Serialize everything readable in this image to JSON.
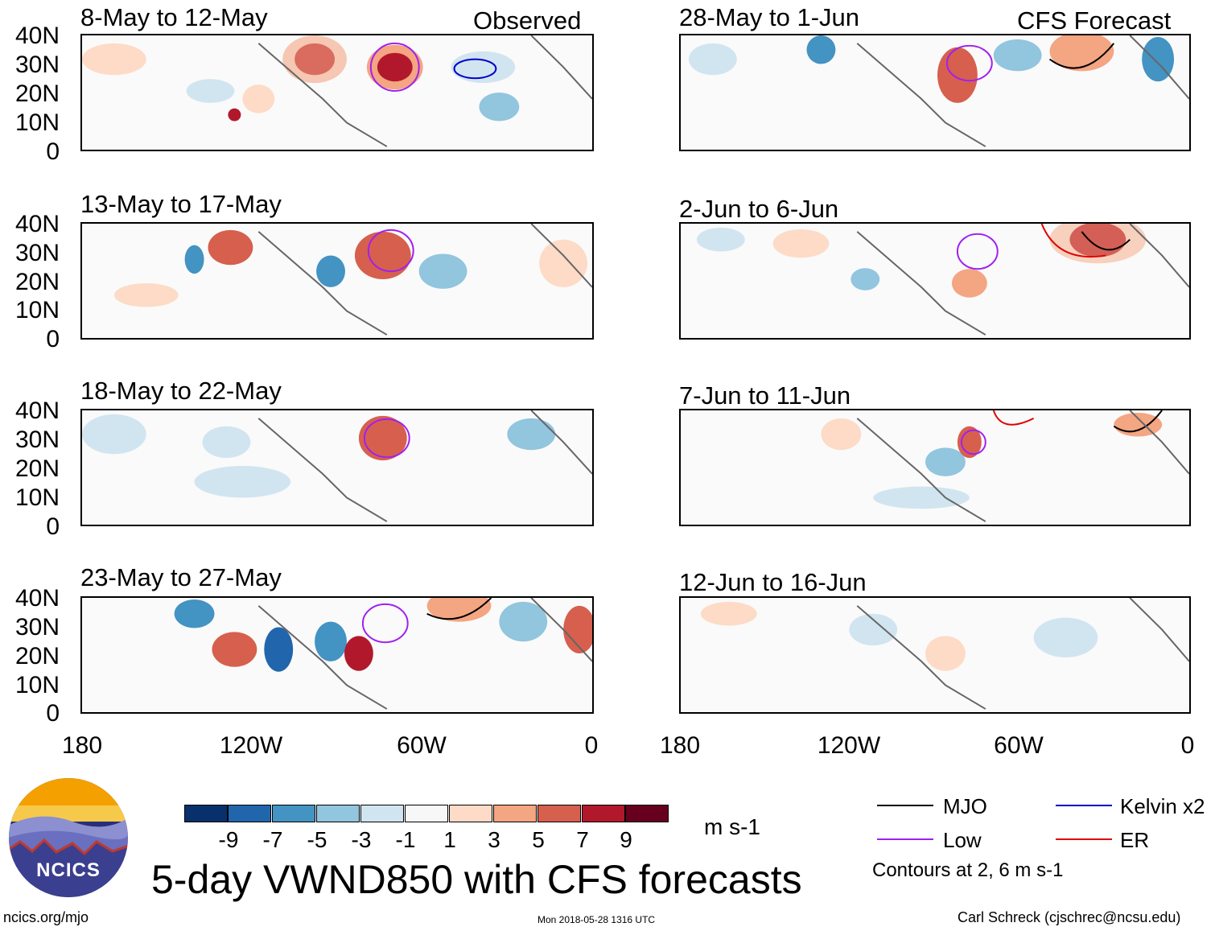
{
  "observed_label": "Observed",
  "forecast_label": "CFS Forecast",
  "lat_labels": [
    "40N",
    "30N",
    "20N",
    "10N",
    "0"
  ],
  "lon_labels": [
    "180",
    "120W",
    "60W",
    "0"
  ],
  "panels_left": [
    {
      "title": "8-May to 12-May"
    },
    {
      "title": "13-May to 17-May"
    },
    {
      "title": "18-May to 22-May"
    },
    {
      "title": "23-May to 27-May"
    }
  ],
  "panels_right": [
    {
      "title": "28-May to 1-Jun"
    },
    {
      "title": "2-Jun to 6-Jun"
    },
    {
      "title": "7-Jun to 11-Jun"
    },
    {
      "title": "12-Jun to 16-Jun"
    }
  ],
  "colorbar": {
    "labels": [
      "-9",
      "-7",
      "-5",
      "-3",
      "-1",
      "1",
      "3",
      "5",
      "7",
      "9"
    ],
    "colors": [
      "#08306b",
      "#2166ac",
      "#4393c3",
      "#92c5de",
      "#d1e5f0",
      "#f7f7f7",
      "#fddbc7",
      "#f4a582",
      "#d6604d",
      "#b2182b",
      "#67001f"
    ],
    "units": "m s-1"
  },
  "main_title": "5-day VWND850 with CFS forecasts",
  "legend": {
    "items": [
      {
        "label": "MJO",
        "color": "#000000"
      },
      {
        "label": "Kelvin x2",
        "color": "#0000cc"
      },
      {
        "label": "Low",
        "color": "#a020f0"
      },
      {
        "label": "ER",
        "color": "#e00000"
      }
    ],
    "note": "Contours at 2, 6 m s-1"
  },
  "logo_text": "NCICS",
  "site_url": "ncics.org/mjo",
  "timestamp": "Mon 2018-05-28 1316 UTC",
  "author": "Carl Schreck (cjschrec@ncsu.edu)"
}
